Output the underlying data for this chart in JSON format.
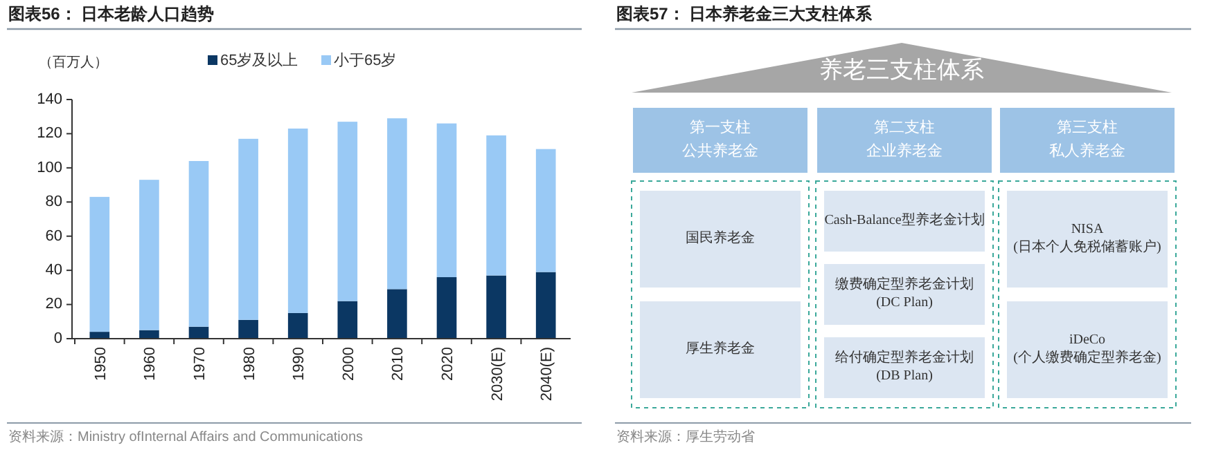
{
  "chart_data": [
    {
      "type": "bar",
      "title": "图表56： 日本老龄人口趋势",
      "ylabel": "（百万人）",
      "categories": [
        "1950",
        "1960",
        "1970",
        "1980",
        "1990",
        "2000",
        "2010",
        "2020",
        "2030(E)",
        "2040(E)"
      ],
      "stacked": true,
      "legend": "top",
      "ylim": [
        0,
        140
      ],
      "yticks": [
        0,
        20,
        40,
        60,
        80,
        100,
        120,
        140
      ],
      "series": [
        {
          "name": "65岁及以上",
          "color": "#0b3763",
          "values": [
            4,
            5,
            7,
            11,
            15,
            22,
            29,
            36,
            37,
            39
          ]
        },
        {
          "name": "小于65岁",
          "color": "#99c9f5",
          "values": [
            79,
            88,
            97,
            106,
            108,
            105,
            100,
            90,
            82,
            72
          ]
        }
      ],
      "annotations": [
        "资料来源：Ministry ofInternal Affairs and Communications"
      ]
    },
    {
      "type": "other",
      "title": "图表57： 日本养老金三大支柱体系",
      "subtitle": "养老三支柱体系",
      "categories": [
        "第一支柱",
        "第二支柱",
        "第三支柱"
      ],
      "annotations": [
        "公共养老金",
        "企业养老金",
        "私人养老金",
        "国民养老金",
        "厚生养老金",
        "Cash-Balance型养老金计划",
        "缴费确定型养老金计划\n(DC Plan)",
        "给付确定型养老金计划\n(DB Plan)",
        "NISA\n(日本个人免税储蓄账户)",
        "iDeCo\n(个人缴费确定型养老金)",
        "资料来源：厚生劳动省"
      ]
    }
  ]
}
